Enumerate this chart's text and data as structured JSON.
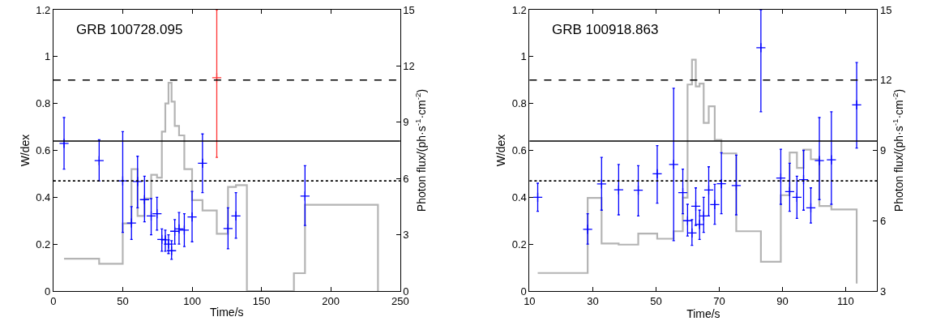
{
  "chart_data": [
    {
      "type": "scatter",
      "xlabel": "Time/s",
      "ylabel": "W/dex",
      "y2label": "Photon flux/(ph·s$^{-1}$·cm$^{-2}$)",
      "annotations": [
        "GRB 100728.095"
      ],
      "xlim": [
        0,
        250
      ],
      "xticks": [
        0,
        50,
        100,
        150,
        200,
        250
      ],
      "ylim": [
        0,
        1.2
      ],
      "yticks": [
        0,
        0.2,
        0.4,
        0.6,
        0.8,
        1,
        1.2
      ],
      "y2lim": [
        0,
        15
      ],
      "y2ticks": [
        0,
        3,
        6,
        9,
        12,
        15
      ],
      "series": [
        {
          "marker": "cross",
          "color": "#0000ff",
          "x": [
            7.7,
            33,
            50,
            56.3,
            60.7,
            65.7,
            70.5,
            74.7,
            78.2,
            80.7,
            83,
            85.2,
            87.5,
            90.6,
            94.4,
            100,
            107.5,
            125.9,
            131.6,
            181.4
          ],
          "values": [
            0.63,
            0.556,
            0.47,
            0.29,
            0.467,
            0.39,
            0.32,
            0.33,
            0.22,
            0.218,
            0.2,
            0.172,
            0.255,
            0.265,
            0.26,
            0.316,
            0.545,
            0.267,
            0.32,
            0.405
          ],
          "errors": [
            [
              0.52,
              0.74
            ],
            [
              0.47,
              0.645
            ],
            [
              0.25,
              0.68
            ],
            [
              0.22,
              0.36
            ],
            [
              0.355,
              0.575
            ],
            [
              0.295,
              0.49
            ],
            [
              0.24,
              0.395
            ],
            [
              0.26,
              0.4
            ],
            [
              0.17,
              0.265
            ],
            [
              0.17,
              0.26
            ],
            [
              0.16,
              0.24
            ],
            [
              0.135,
              0.215
            ],
            [
              0.2,
              0.305
            ],
            [
              0.2,
              0.335
            ],
            [
              0.19,
              0.33
            ],
            [
              0.21,
              0.425
            ],
            [
              0.42,
              0.67
            ],
            [
              0.18,
              0.355
            ],
            [
              0.225,
              0.42
            ],
            [
              0.28,
              0.535
            ]
          ]
        },
        {
          "marker": "cross",
          "color": "#ff3333",
          "x": [
            117.8
          ],
          "values": [
            0.91
          ],
          "errors": [
            [
              0.57,
              1.2
            ]
          ]
        },
        {
          "type": "step",
          "axis": "y2",
          "color": "#b4b4b4",
          "x": [
            7.7,
            33,
            50,
            56.3,
            60.7,
            65.7,
            70.5,
            74.7,
            78.2,
            80.7,
            83,
            85.2,
            87.5,
            90.6,
            94.4,
            100,
            107.5,
            117.8,
            125.9,
            131.6,
            139.5,
            173.4,
            181.4,
            234
          ],
          "values": [
            1.72,
            1.45,
            3.6,
            6.5,
            4.0,
            4.93,
            6.2,
            6.05,
            8.5,
            10.0,
            11.1,
            10.1,
            8.8,
            8.3,
            6.5,
            4.85,
            4.3,
            3.05,
            5.55,
            5.65,
            0,
            0.95,
            4.6,
            0
          ]
        }
      ],
      "ref_lines": [
        {
          "axis": "y",
          "value": 0.9,
          "line_style": "dashed",
          "color": "#000000"
        },
        {
          "axis": "y",
          "value": 0.64,
          "line_style": "solid",
          "color": "#000000"
        },
        {
          "axis": "y",
          "value": 0.47,
          "line_style": "dotted",
          "color": "#000000"
        }
      ]
    },
    {
      "type": "scatter",
      "xlabel": "Time/s",
      "ylabel": "W/dex",
      "y2label": "Photon flux/(ph·s$^{-1}$·cm$^{-2}$)",
      "annotations": [
        "GRB 100918.863"
      ],
      "xlim": [
        10,
        120
      ],
      "xticks": [
        10,
        30,
        50,
        70,
        90,
        110
      ],
      "ylim": [
        0,
        1.2
      ],
      "yticks": [
        0,
        0.2,
        0.4,
        0.6,
        0.8,
        1,
        1.2
      ],
      "y2lim": [
        3,
        15
      ],
      "y2ticks": [
        3,
        6,
        9,
        12,
        15
      ],
      "series": [
        {
          "marker": "cross",
          "color": "#0000ff",
          "x": [
            12.6,
            28.4,
            32.8,
            38.2,
            44.4,
            50.4,
            55.6,
            58.5,
            60,
            61.4,
            62.6,
            63.8,
            65.1,
            66.7,
            68.6,
            70.7,
            75.4,
            83.2,
            89.5,
            92.3,
            94.6,
            96.7,
            99,
            101.7,
            105.5,
            113.5
          ],
          "values": [
            0.4,
            0.263,
            0.457,
            0.432,
            0.43,
            0.5,
            0.54,
            0.42,
            0.3,
            0.248,
            0.362,
            0.284,
            0.32,
            0.431,
            0.369,
            0.458,
            0.45,
            1.038,
            0.482,
            0.424,
            0.4,
            0.475,
            0.355,
            0.556,
            0.56,
            0.794
          ],
          "errors": [
            [
              0.34,
              0.46
            ],
            [
              0.2,
              0.33
            ],
            [
              0.345,
              0.57
            ],
            [
              0.325,
              0.54
            ],
            [
              0.32,
              0.535
            ],
            [
              0.375,
              0.62
            ],
            [
              0.215,
              0.865
            ],
            [
              0.33,
              0.52
            ],
            [
              0.235,
              0.37
            ],
            [
              0.195,
              0.305
            ],
            [
              0.28,
              0.44
            ],
            [
              0.22,
              0.345
            ],
            [
              0.25,
              0.4
            ],
            [
              0.32,
              0.53
            ],
            [
              0.285,
              0.455
            ],
            [
              0.33,
              0.59
            ],
            [
              0.325,
              0.58
            ],
            [
              0.765,
              1.2
            ],
            [
              0.37,
              0.605
            ],
            [
              0.34,
              0.545
            ],
            [
              0.31,
              0.49
            ],
            [
              0.345,
              0.6
            ],
            [
              0.29,
              0.44
            ],
            [
              0.39,
              0.74
            ],
            [
              0.37,
              0.765
            ],
            [
              0.61,
              0.975
            ]
          ]
        },
        {
          "type": "step",
          "axis": "y2",
          "color": "#b4b4b4",
          "x": [
            12.6,
            28.4,
            32.8,
            38.2,
            44.4,
            50.4,
            55.6,
            58.5,
            60,
            61.4,
            62.6,
            63.8,
            65.1,
            66.7,
            68.6,
            70.7,
            75.4,
            83.2,
            89.5,
            92.3,
            94.6,
            96.7,
            99,
            101.7,
            105.5,
            113.5
          ],
          "values": [
            3.77,
            6.97,
            5.03,
            4.98,
            5.45,
            5.23,
            5.55,
            6.98,
            11.81,
            12.87,
            11.73,
            11.85,
            10.17,
            10.88,
            9.45,
            8.87,
            5.55,
            4.25,
            7.09,
            8.91,
            8.25,
            9.03,
            8.62,
            6.63,
            6.48,
            3.32
          ]
        }
      ],
      "ref_lines": [
        {
          "axis": "y",
          "value": 0.9,
          "line_style": "dashed",
          "color": "#000000"
        },
        {
          "axis": "y",
          "value": 0.64,
          "line_style": "solid",
          "color": "#000000"
        },
        {
          "axis": "y",
          "value": 0.47,
          "line_style": "dotted",
          "color": "#000000"
        }
      ]
    }
  ]
}
